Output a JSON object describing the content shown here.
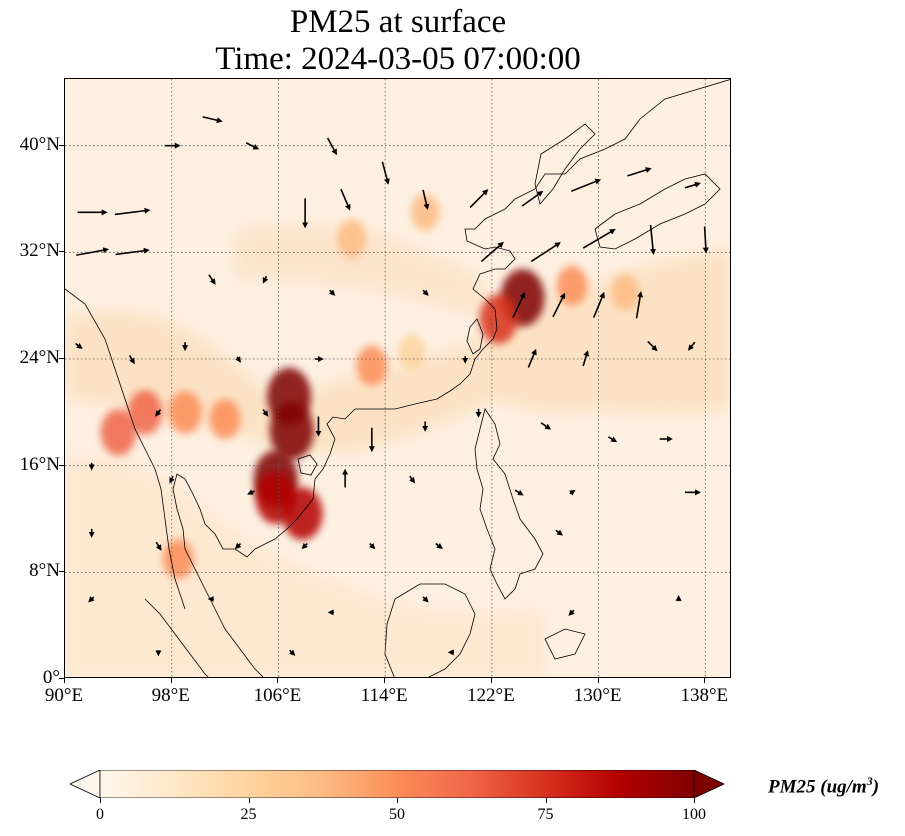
{
  "title": {
    "line1": "PM25 at surface",
    "line2": "Time: 2024-03-05 07:00:00"
  },
  "map": {
    "extent": {
      "lon_min": 90,
      "lon_max": 140,
      "lat_min": 0,
      "lat_max": 45
    },
    "lat_ticks": [
      {
        "value": 0,
        "label": "0°"
      },
      {
        "value": 8,
        "label": "8°N"
      },
      {
        "value": 16,
        "label": "16°N"
      },
      {
        "value": 24,
        "label": "24°N"
      },
      {
        "value": 32,
        "label": "32°N"
      },
      {
        "value": 40,
        "label": "40°N"
      }
    ],
    "lon_ticks": [
      {
        "value": 90,
        "label": "90°E"
      },
      {
        "value": 98,
        "label": "98°E"
      },
      {
        "value": 106,
        "label": "106°E"
      },
      {
        "value": 114,
        "label": "114°E"
      },
      {
        "value": 122,
        "label": "122°E"
      },
      {
        "value": 130,
        "label": "130°E"
      },
      {
        "value": 138,
        "label": "138°E"
      }
    ],
    "gridlines": "dotted",
    "background_color": "#fdf0e1",
    "pollution_hotspots": [
      {
        "lon": 106.8,
        "lat": 21.2,
        "pm25": 100
      },
      {
        "lon": 107.0,
        "lat": 18.6,
        "pm25": 100
      },
      {
        "lon": 105.8,
        "lat": 15.0,
        "pm25": 100
      },
      {
        "lon": 105.8,
        "lat": 13.6,
        "pm25": 85
      },
      {
        "lon": 107.8,
        "lat": 12.4,
        "pm25": 85
      },
      {
        "lon": 124.3,
        "lat": 28.6,
        "pm25": 100
      },
      {
        "lon": 122.5,
        "lat": 27.0,
        "pm25": 75
      },
      {
        "lon": 94.0,
        "lat": 18.5,
        "pm25": 65
      },
      {
        "lon": 96.0,
        "lat": 20.0,
        "pm25": 60
      },
      {
        "lon": 99.0,
        "lat": 20.0,
        "pm25": 55
      },
      {
        "lon": 102.0,
        "lat": 19.5,
        "pm25": 45
      },
      {
        "lon": 98.5,
        "lat": 9.0,
        "pm25": 45
      },
      {
        "lon": 113.0,
        "lat": 23.5,
        "pm25": 45
      },
      {
        "lon": 111.5,
        "lat": 33.0,
        "pm25": 40
      },
      {
        "lon": 117.0,
        "lat": 35.0,
        "pm25": 35
      },
      {
        "lon": 128.0,
        "lat": 29.5,
        "pm25": 45
      },
      {
        "lon": 132.0,
        "lat": 29.0,
        "pm25": 35
      },
      {
        "lon": 116.0,
        "lat": 24.5,
        "pm25": 30
      }
    ],
    "wind_vectors": [
      {
        "lon": 92,
        "lat": 35,
        "u": 2.0,
        "v": 0.0
      },
      {
        "lon": 95,
        "lat": 35,
        "u": 2.4,
        "v": 0.3
      },
      {
        "lon": 92,
        "lat": 32,
        "u": 2.2,
        "v": 0.4
      },
      {
        "lon": 95,
        "lat": 32,
        "u": 2.3,
        "v": 0.3
      },
      {
        "lon": 98,
        "lat": 40,
        "u": 1.0,
        "v": 0.0
      },
      {
        "lon": 101,
        "lat": 42,
        "u": 1.3,
        "v": -0.3
      },
      {
        "lon": 104,
        "lat": 40,
        "u": 0.8,
        "v": -0.4
      },
      {
        "lon": 110,
        "lat": 40,
        "u": 0.6,
        "v": -1.1
      },
      {
        "lon": 114,
        "lat": 38,
        "u": 0.4,
        "v": -1.5
      },
      {
        "lon": 108,
        "lat": 35,
        "u": 0.0,
        "v": -2.0
      },
      {
        "lon": 111,
        "lat": 36,
        "u": 0.6,
        "v": -1.4
      },
      {
        "lon": 117,
        "lat": 36,
        "u": 0.3,
        "v": -1.3
      },
      {
        "lon": 121,
        "lat": 36,
        "u": 1.2,
        "v": 1.2
      },
      {
        "lon": 125,
        "lat": 36,
        "u": 1.4,
        "v": 1.0
      },
      {
        "lon": 129,
        "lat": 37,
        "u": 2.0,
        "v": 0.8
      },
      {
        "lon": 133,
        "lat": 38,
        "u": 1.6,
        "v": 0.5
      },
      {
        "lon": 137,
        "lat": 37,
        "u": 1.0,
        "v": 0.3
      },
      {
        "lon": 122,
        "lat": 32,
        "u": 1.5,
        "v": 1.3
      },
      {
        "lon": 126,
        "lat": 32,
        "u": 2.0,
        "v": 1.3
      },
      {
        "lon": 130,
        "lat": 33,
        "u": 2.2,
        "v": 1.3
      },
      {
        "lon": 134,
        "lat": 33,
        "u": 0.2,
        "v": -2.0
      },
      {
        "lon": 138,
        "lat": 33,
        "u": 0.1,
        "v": -1.8
      },
      {
        "lon": 101,
        "lat": 30,
        "u": 0.4,
        "v": -0.6
      },
      {
        "lon": 105,
        "lat": 30,
        "u": -0.2,
        "v": -0.4
      },
      {
        "lon": 110,
        "lat": 29,
        "u": 0.3,
        "v": -0.3
      },
      {
        "lon": 117,
        "lat": 29,
        "u": 0.3,
        "v": -0.3
      },
      {
        "lon": 124,
        "lat": 28,
        "u": 0.8,
        "v": 1.7
      },
      {
        "lon": 127,
        "lat": 28,
        "u": 0.8,
        "v": 1.6
      },
      {
        "lon": 130,
        "lat": 28,
        "u": 0.7,
        "v": 1.7
      },
      {
        "lon": 133,
        "lat": 28,
        "u": 0.3,
        "v": 1.8
      },
      {
        "lon": 91,
        "lat": 25,
        "u": 0.4,
        "v": -0.3
      },
      {
        "lon": 95,
        "lat": 24,
        "u": 0.3,
        "v": -0.5
      },
      {
        "lon": 99,
        "lat": 25,
        "u": 0.0,
        "v": -0.5
      },
      {
        "lon": 103,
        "lat": 24,
        "u": 0.2,
        "v": -0.3
      },
      {
        "lon": 109,
        "lat": 24,
        "u": 0.5,
        "v": 0.0
      },
      {
        "lon": 120,
        "lat": 24,
        "u": 0.0,
        "v": -0.4
      },
      {
        "lon": 125,
        "lat": 24,
        "u": 0.5,
        "v": 1.2
      },
      {
        "lon": 129,
        "lat": 24,
        "u": 0.3,
        "v": 1.0
      },
      {
        "lon": 134,
        "lat": 25,
        "u": 0.6,
        "v": -0.6
      },
      {
        "lon": 137,
        "lat": 25,
        "u": -0.4,
        "v": -0.5
      },
      {
        "lon": 97,
        "lat": 20,
        "u": -0.3,
        "v": -0.4
      },
      {
        "lon": 105,
        "lat": 20,
        "u": 0.3,
        "v": -0.4
      },
      {
        "lon": 109,
        "lat": 19,
        "u": 0.0,
        "v": -1.3
      },
      {
        "lon": 113,
        "lat": 18,
        "u": 0.0,
        "v": -1.6
      },
      {
        "lon": 117,
        "lat": 19,
        "u": 0.0,
        "v": -0.6
      },
      {
        "lon": 121,
        "lat": 20,
        "u": 0.0,
        "v": -0.5
      },
      {
        "lon": 126,
        "lat": 19,
        "u": 0.6,
        "v": -0.4
      },
      {
        "lon": 131,
        "lat": 18,
        "u": 0.5,
        "v": -0.3
      },
      {
        "lon": 135,
        "lat": 18,
        "u": 0.8,
        "v": 0.0
      },
      {
        "lon": 92,
        "lat": 16,
        "u": 0.0,
        "v": -0.4
      },
      {
        "lon": 98,
        "lat": 15,
        "u": -0.2,
        "v": -0.4
      },
      {
        "lon": 104,
        "lat": 14,
        "u": -0.4,
        "v": -0.2
      },
      {
        "lon": 111,
        "lat": 15,
        "u": 0.0,
        "v": 1.2
      },
      {
        "lon": 116,
        "lat": 15,
        "u": 0.3,
        "v": -0.4
      },
      {
        "lon": 124,
        "lat": 14,
        "u": 0.5,
        "v": -0.3
      },
      {
        "lon": 128,
        "lat": 14,
        "u": 0.3,
        "v": 0.2
      },
      {
        "lon": 137,
        "lat": 14,
        "u": 1.0,
        "v": 0.0
      },
      {
        "lon": 92,
        "lat": 11,
        "u": 0.0,
        "v": -0.5
      },
      {
        "lon": 97,
        "lat": 10,
        "u": 0.3,
        "v": -0.5
      },
      {
        "lon": 103,
        "lat": 10,
        "u": -0.3,
        "v": -0.3
      },
      {
        "lon": 108,
        "lat": 10,
        "u": -0.3,
        "v": -0.3
      },
      {
        "lon": 113,
        "lat": 10,
        "u": 0.3,
        "v": -0.3
      },
      {
        "lon": 118,
        "lat": 10,
        "u": 0.4,
        "v": -0.3
      },
      {
        "lon": 127,
        "lat": 11,
        "u": 0.4,
        "v": -0.3
      },
      {
        "lon": 92,
        "lat": 6,
        "u": -0.3,
        "v": -0.3
      },
      {
        "lon": 101,
        "lat": 6,
        "u": -0.3,
        "v": 0.0
      },
      {
        "lon": 110,
        "lat": 5,
        "u": -0.3,
        "v": 0.0
      },
      {
        "lon": 117,
        "lat": 6,
        "u": 0.3,
        "v": -0.3
      },
      {
        "lon": 128,
        "lat": 5,
        "u": -0.3,
        "v": -0.3
      },
      {
        "lon": 136,
        "lat": 6,
        "u": 0.0,
        "v": 0.3
      },
      {
        "lon": 97,
        "lat": 2,
        "u": 0.0,
        "v": -0.3
      },
      {
        "lon": 107,
        "lat": 2,
        "u": 0.3,
        "v": -0.3
      },
      {
        "lon": 119,
        "lat": 2,
        "u": -0.3,
        "v": 0.0
      }
    ]
  },
  "colorbar": {
    "label": "PM25 (ug/m³)",
    "label_base": "PM25 (ug/m",
    "label_sup": "3",
    "label_close": ")",
    "min": 0,
    "max": 100,
    "ticks": [
      {
        "value": 0,
        "label": "0"
      },
      {
        "value": 25,
        "label": "25"
      },
      {
        "value": 50,
        "label": "50"
      },
      {
        "value": 75,
        "label": "75"
      },
      {
        "value": 100,
        "label": "100"
      }
    ],
    "colormap": "OrRd",
    "extend": "both",
    "colors": [
      "#fff7ec",
      "#fee8c8",
      "#fdd49e",
      "#fdbb84",
      "#fc8d59",
      "#ef6548",
      "#d7301f",
      "#b30000",
      "#7f0000"
    ]
  }
}
